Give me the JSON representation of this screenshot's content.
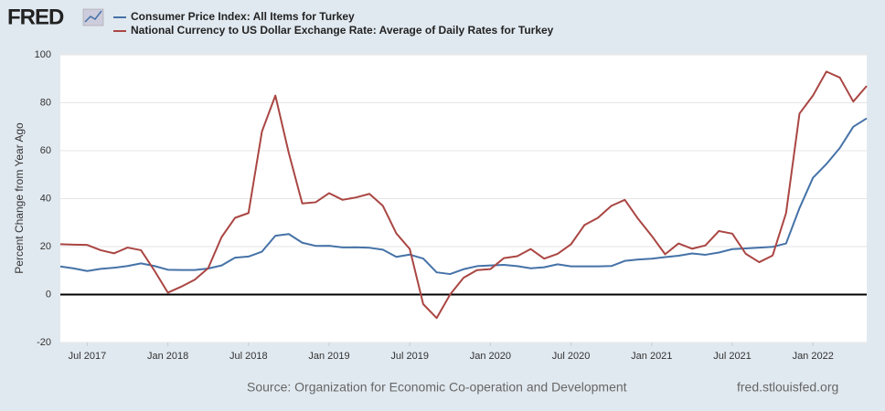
{
  "logo": "FRED",
  "chart_data": {
    "type": "line",
    "x": [
      "2017-05",
      "2017-06",
      "2017-07",
      "2017-08",
      "2017-09",
      "2017-10",
      "2017-11",
      "2017-12",
      "2018-01",
      "2018-02",
      "2018-03",
      "2018-04",
      "2018-05",
      "2018-06",
      "2018-07",
      "2018-08",
      "2018-09",
      "2018-10",
      "2018-11",
      "2018-12",
      "2019-01",
      "2019-02",
      "2019-03",
      "2019-04",
      "2019-05",
      "2019-06",
      "2019-07",
      "2019-08",
      "2019-09",
      "2019-10",
      "2019-11",
      "2019-12",
      "2020-01",
      "2020-02",
      "2020-03",
      "2020-04",
      "2020-05",
      "2020-06",
      "2020-07",
      "2020-08",
      "2020-09",
      "2020-10",
      "2020-11",
      "2020-12",
      "2021-01",
      "2021-02",
      "2021-03",
      "2021-04",
      "2021-05",
      "2021-06",
      "2021-07",
      "2021-08",
      "2021-09",
      "2021-10",
      "2021-11",
      "2021-12",
      "2022-01",
      "2022-02",
      "2022-03",
      "2022-04",
      "2022-05"
    ],
    "series": [
      {
        "name": "Consumer Price Index: All Items for Turkey",
        "color": "#4572a7",
        "values": [
          11.7,
          10.9,
          9.8,
          10.7,
          11.2,
          11.9,
          13.0,
          11.9,
          10.35,
          10.26,
          10.23,
          10.85,
          12.15,
          15.39,
          15.85,
          17.9,
          24.52,
          25.24,
          21.62,
          20.3,
          20.35,
          19.67,
          19.71,
          19.5,
          18.71,
          15.72,
          16.65,
          15.01,
          9.26,
          8.55,
          10.56,
          11.84,
          12.15,
          12.37,
          11.86,
          10.94,
          11.39,
          12.62,
          11.76,
          11.77,
          11.75,
          11.89,
          14.03,
          14.6,
          14.97,
          15.61,
          16.19,
          17.14,
          16.59,
          17.53,
          18.95,
          19.25,
          19.58,
          19.89,
          21.31,
          36.08,
          48.69,
          54.44,
          61.14,
          69.97,
          73.5
        ]
      },
      {
        "name": "National Currency to US Dollar Exchange Rate: Average of Daily Rates for Turkey",
        "color": "#aa4643",
        "values": [
          21,
          20.8,
          20.7,
          18.5,
          17.2,
          19.6,
          18.5,
          10,
          0.8,
          3.3,
          6.2,
          11,
          24,
          32,
          34,
          68,
          83,
          59,
          38,
          38.5,
          42.3,
          39.5,
          40.5,
          42,
          37,
          25.5,
          19,
          -4,
          -9.8,
          0,
          7,
          10.2,
          10.6,
          15.2,
          16,
          19,
          15,
          17,
          21,
          29,
          32,
          37,
          39.5,
          31.5,
          24.5,
          16.8,
          21.3,
          19.1,
          20.5,
          26.5,
          25.4,
          17,
          13.5,
          16.3,
          34,
          75.5,
          83,
          93,
          90.5,
          80.5,
          87
        ]
      }
    ],
    "ylabel": "Percent Change from Year Ago",
    "xlim": [
      "2017-05",
      "2022-05"
    ],
    "xticks": [
      {
        "value": "2017-07",
        "label": "Jul 2017"
      },
      {
        "value": "2018-01",
        "label": "Jan 2018"
      },
      {
        "value": "2018-07",
        "label": "Jul 2018"
      },
      {
        "value": "2019-01",
        "label": "Jan 2019"
      },
      {
        "value": "2019-07",
        "label": "Jul 2019"
      },
      {
        "value": "2020-01",
        "label": "Jan 2020"
      },
      {
        "value": "2020-07",
        "label": "Jul 2020"
      },
      {
        "value": "2021-01",
        "label": "Jan 2021"
      },
      {
        "value": "2021-07",
        "label": "Jul 2021"
      },
      {
        "value": "2022-01",
        "label": "Jan 2022"
      }
    ],
    "ylim": [
      -20,
      100
    ],
    "yticks": [
      -20,
      0,
      20,
      40,
      60,
      80,
      100
    ],
    "grid": true,
    "hline": 0,
    "source": "Source: Organization for Economic Co-operation and Development",
    "site": "fred.stlouisfed.org"
  }
}
